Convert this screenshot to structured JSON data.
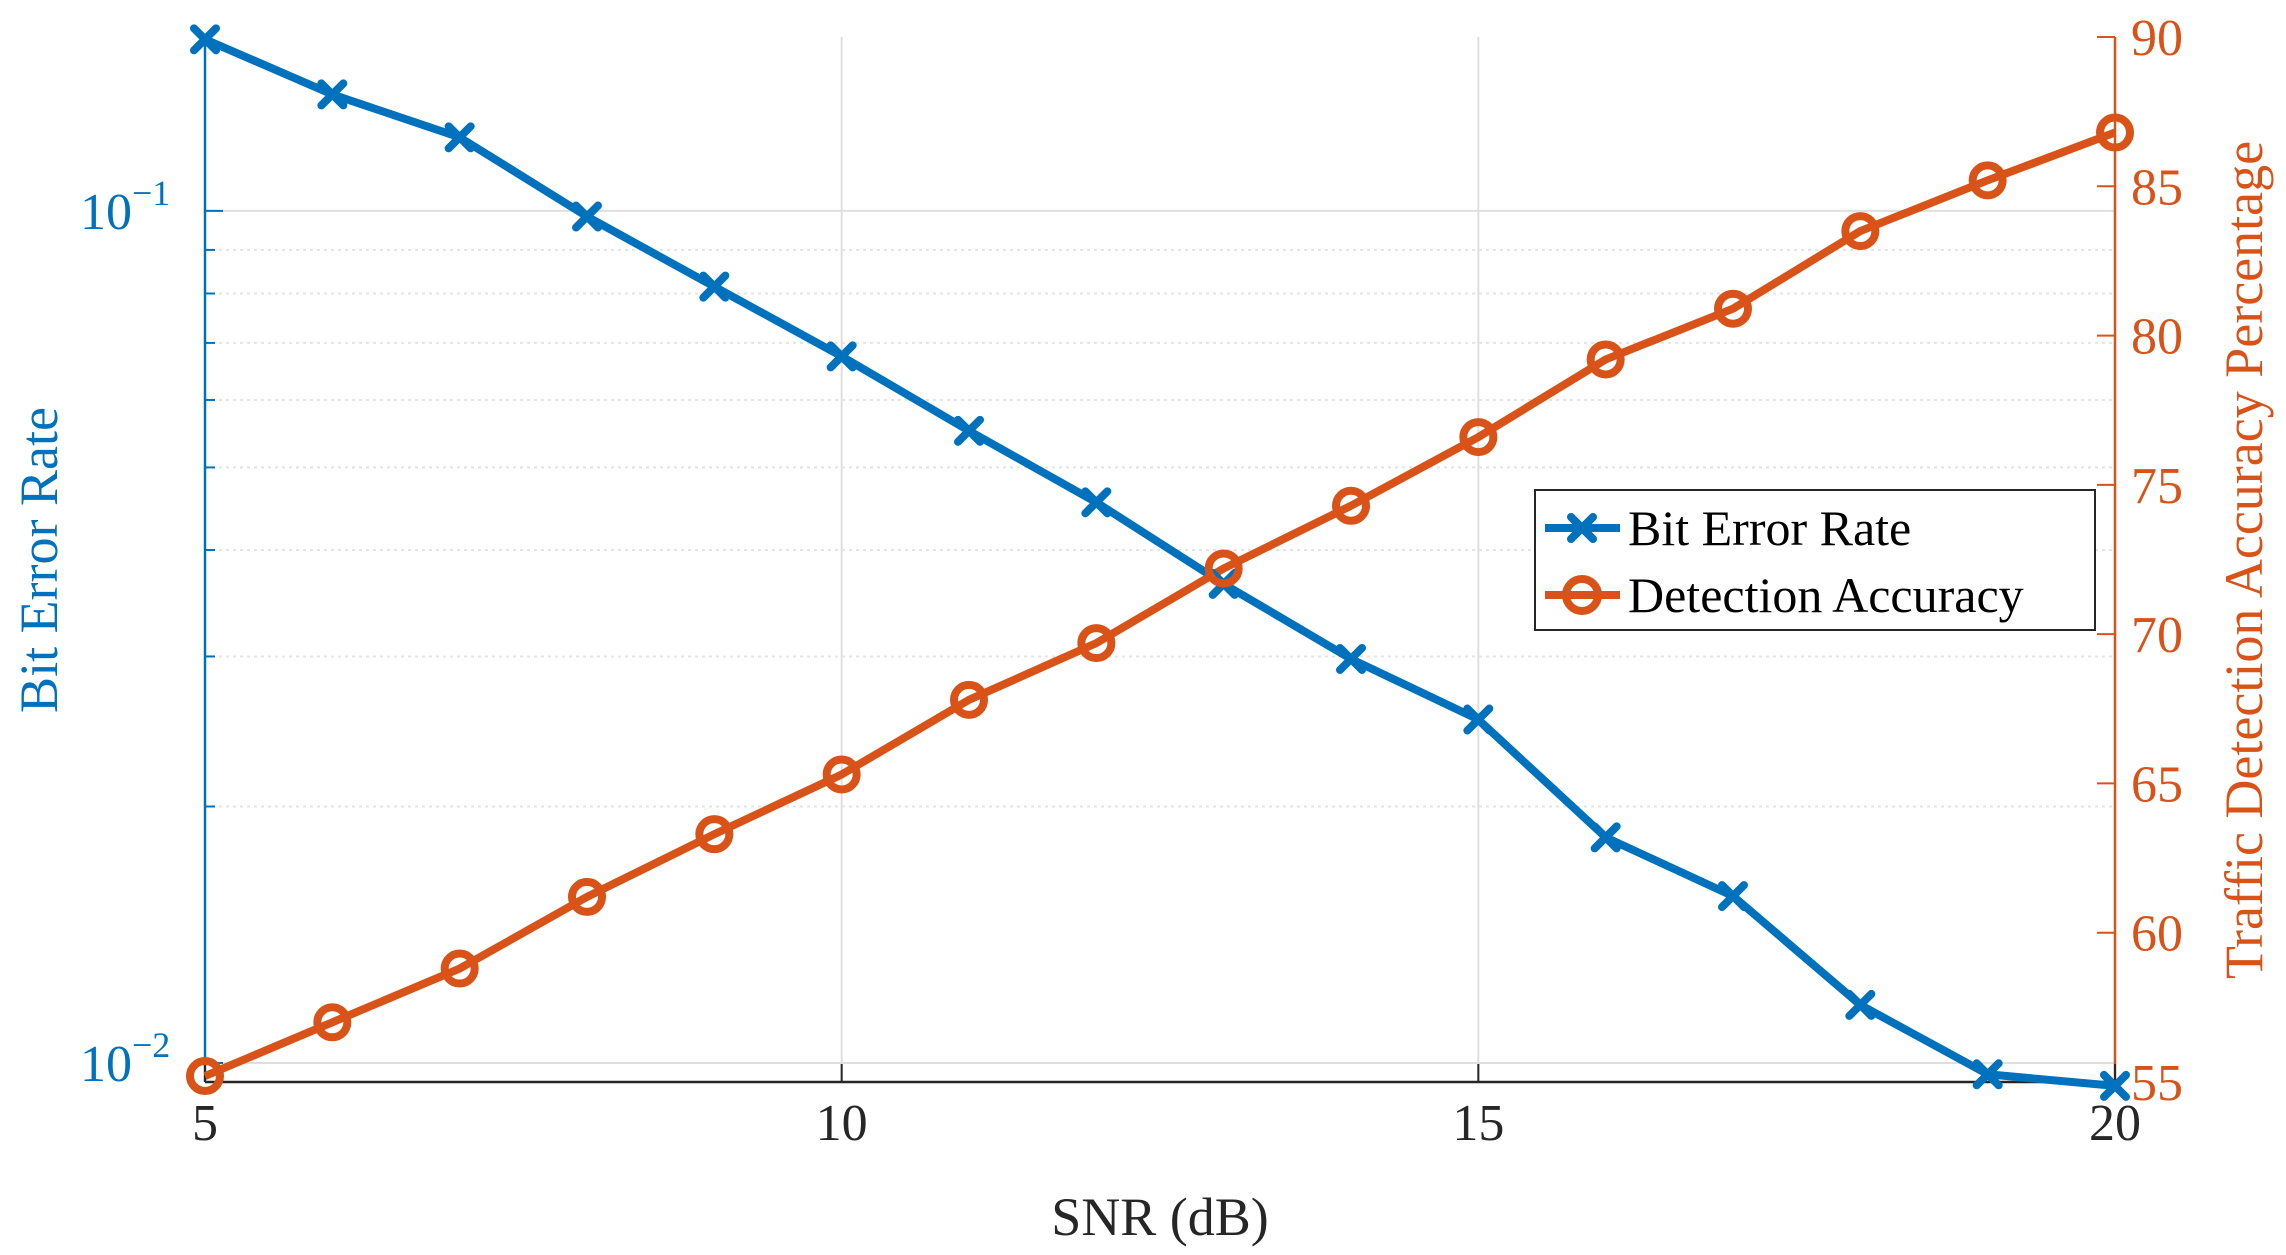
{
  "chart_data": {
    "type": "line",
    "xlabel": "SNR (dB)",
    "ylabel_left": "Bit Error Rate",
    "ylabel_right": "Traffic Detection Accuracy Percentage",
    "xlim": [
      5,
      20
    ],
    "xticks": [
      5,
      10,
      15,
      20
    ],
    "ylim_left": [
      0.0095,
      0.16
    ],
    "yscale_left": "log",
    "yticks_left": [
      {
        "value": 0.1,
        "base": "10",
        "exp": "−1"
      },
      {
        "value": 0.01,
        "base": "10",
        "exp": "−2"
      }
    ],
    "ylim_right": [
      55,
      90
    ],
    "yticks_right": [
      55,
      60,
      65,
      70,
      75,
      80,
      85,
      90
    ],
    "grid": true,
    "legend_position": "center-right",
    "x": [
      5,
      6,
      7,
      8,
      9,
      10,
      11,
      12,
      13,
      14,
      15,
      16,
      17,
      18,
      19,
      20
    ],
    "series": [
      {
        "name": "Bit Error Rate",
        "axis": "left",
        "color": "#0072BD",
        "marker": "x",
        "values": [
          0.159,
          0.137,
          0.122,
          0.0985,
          0.0815,
          0.0675,
          0.0552,
          0.0455,
          0.0365,
          0.0298,
          0.0253,
          0.0184,
          0.0157,
          0.0117,
          0.0097,
          0.0094
        ]
      },
      {
        "name": "Detection Accuracy",
        "axis": "right",
        "color": "#D95319",
        "marker": "o",
        "values": [
          55.2,
          57.0,
          58.8,
          61.2,
          63.3,
          65.3,
          67.8,
          69.7,
          72.2,
          74.3,
          76.6,
          79.2,
          80.9,
          83.5,
          85.2,
          86.8
        ]
      }
    ]
  }
}
